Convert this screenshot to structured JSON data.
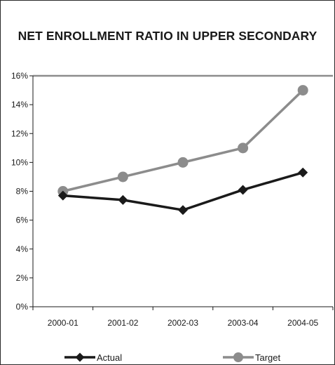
{
  "chart_data": {
    "type": "line",
    "title": "NET ENROLLMENT RATIO IN UPPER SECONDARY",
    "categories": [
      "2000-01",
      "2001-02",
      "2002-03",
      "2003-04",
      "2004-05"
    ],
    "y_ticks": [
      "0%",
      "2%",
      "4%",
      "6%",
      "8%",
      "10%",
      "12%",
      "14%",
      "16%"
    ],
    "ylim": [
      0,
      16
    ],
    "grid": false,
    "legend_position": "bottom",
    "series": [
      {
        "name": "Actual",
        "values": [
          7.7,
          7.4,
          6.7,
          8.1,
          9.3
        ],
        "color": "#1a1a1a",
        "marker": "diamond"
      },
      {
        "name": "Target",
        "values": [
          8.0,
          9.0,
          10.0,
          11.0,
          15.0
        ],
        "color": "#8c8c8c",
        "marker": "circle"
      }
    ]
  }
}
